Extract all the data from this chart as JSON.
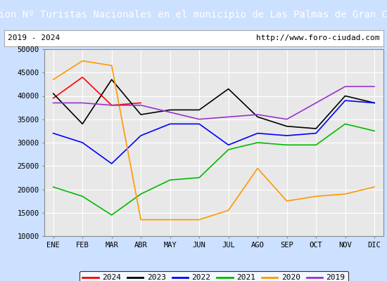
{
  "title": "Evolucion Nº Turistas Nacionales en el municipio de Las Palmas de Gran Canaria",
  "subtitle_left": "2019 - 2024",
  "subtitle_right": "http://www.foro-ciudad.com",
  "x_labels": [
    "ENE",
    "FEB",
    "MAR",
    "ABR",
    "MAY",
    "JUN",
    "JUL",
    "AGO",
    "SEP",
    "OCT",
    "NOV",
    "DIC"
  ],
  "ylim": [
    10000,
    50000
  ],
  "yticks": [
    10000,
    15000,
    20000,
    25000,
    30000,
    35000,
    40000,
    45000,
    50000
  ],
  "series": {
    "2024": {
      "color": "#ff0000",
      "data": [
        39500,
        44000,
        38000,
        38500,
        null,
        null,
        null,
        null,
        null,
        null,
        null,
        null
      ]
    },
    "2023": {
      "color": "#000000",
      "data": [
        40500,
        34000,
        43500,
        36000,
        37000,
        37000,
        41500,
        35500,
        33500,
        33000,
        40000,
        38500
      ]
    },
    "2022": {
      "color": "#0000ff",
      "data": [
        32000,
        30000,
        25500,
        31500,
        34000,
        34000,
        29500,
        32000,
        31500,
        32000,
        39000,
        38500
      ]
    },
    "2021": {
      "color": "#00bb00",
      "data": [
        20500,
        18500,
        14500,
        19000,
        22000,
        22500,
        28500,
        30000,
        29500,
        29500,
        34000,
        32500
      ]
    },
    "2020": {
      "color": "#ff9900",
      "data": [
        43500,
        47500,
        46500,
        13500,
        13500,
        13500,
        15500,
        24500,
        17500,
        18500,
        19000,
        20500
      ]
    },
    "2019": {
      "color": "#9933cc",
      "data": [
        38500,
        38500,
        38000,
        38000,
        36500,
        35000,
        35500,
        36000,
        35000,
        38500,
        42000,
        42000
      ]
    }
  },
  "title_bg": "#5599dd",
  "subtitle_bg": "#ffffff",
  "plot_bg": "#e8e8e8",
  "outer_bg": "#cce0ff",
  "title_color": "#ffffff",
  "title_fontsize": 10,
  "subtitle_fontsize": 8,
  "tick_fontsize": 7.5,
  "legend_fontsize": 8
}
